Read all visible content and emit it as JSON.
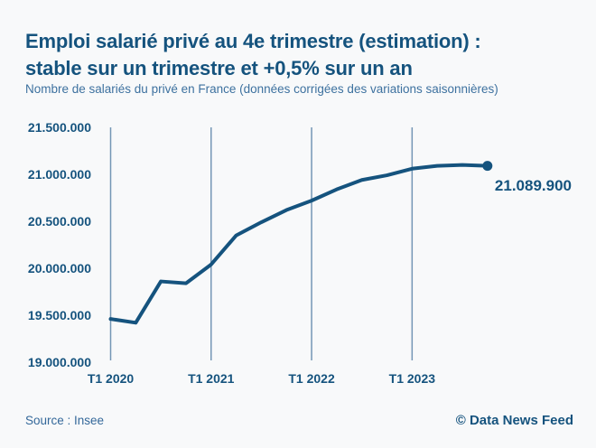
{
  "header": {
    "title_line1": "Emploi salarié privé au 4e trimestre (estimation) :",
    "title_line2": "stable sur un trimestre et +0,5% sur un an",
    "subtitle": "Nombre de salariés du privé en France (données corrigées des variations saisonnières)"
  },
  "footer": {
    "source": "Source : Insee",
    "credit": "© Data News Feed"
  },
  "colors": {
    "accent": "#15537E",
    "line": "#15537E",
    "dot": "#15537E",
    "gridline": "#7496B5",
    "subtitle_blue": "#3D719F",
    "background": "#F8F9FA"
  },
  "chart_data": {
    "type": "line",
    "title": "Emploi salarié privé au 4e trimestre (estimation) : stable sur un trimestre et +0,5% sur un an",
    "subtitle": "Nombre de salariés du privé en France (données corrigées des variations saisonnières)",
    "xlabel": "",
    "ylabel": "",
    "legend": "none",
    "grid": "vertical-only",
    "ylim": [
      19000000,
      21500000
    ],
    "x": [
      "T1 2020",
      "T2 2020",
      "T3 2020",
      "T4 2020",
      "T1 2021",
      "T2 2021",
      "T3 2021",
      "T4 2021",
      "T1 2022",
      "T2 2022",
      "T3 2022",
      "T4 2022",
      "T1 2023",
      "T2 2023",
      "T3 2023",
      "T4 2023"
    ],
    "values": [
      19460000,
      19420000,
      19860000,
      19840000,
      20040000,
      20350000,
      20490000,
      20620000,
      20720000,
      20840000,
      20940000,
      20990000,
      21060000,
      21090000,
      21100000,
      21089900
    ],
    "yticks": [
      {
        "value": 21500000,
        "label": "21.500.000"
      },
      {
        "value": 21000000,
        "label": "21.000.000"
      },
      {
        "value": 20500000,
        "label": "20.500.000"
      },
      {
        "value": 20000000,
        "label": "20.000.000"
      },
      {
        "value": 19500000,
        "label": "19.500.000"
      },
      {
        "value": 19000000,
        "label": "19.000.000"
      }
    ],
    "xticks": [
      {
        "index": 0,
        "label": "T1 2020"
      },
      {
        "index": 4,
        "label": "T1 2021"
      },
      {
        "index": 8,
        "label": "T1 2022"
      },
      {
        "index": 12,
        "label": "T1 2023"
      }
    ],
    "end_label": "21.089.900"
  }
}
